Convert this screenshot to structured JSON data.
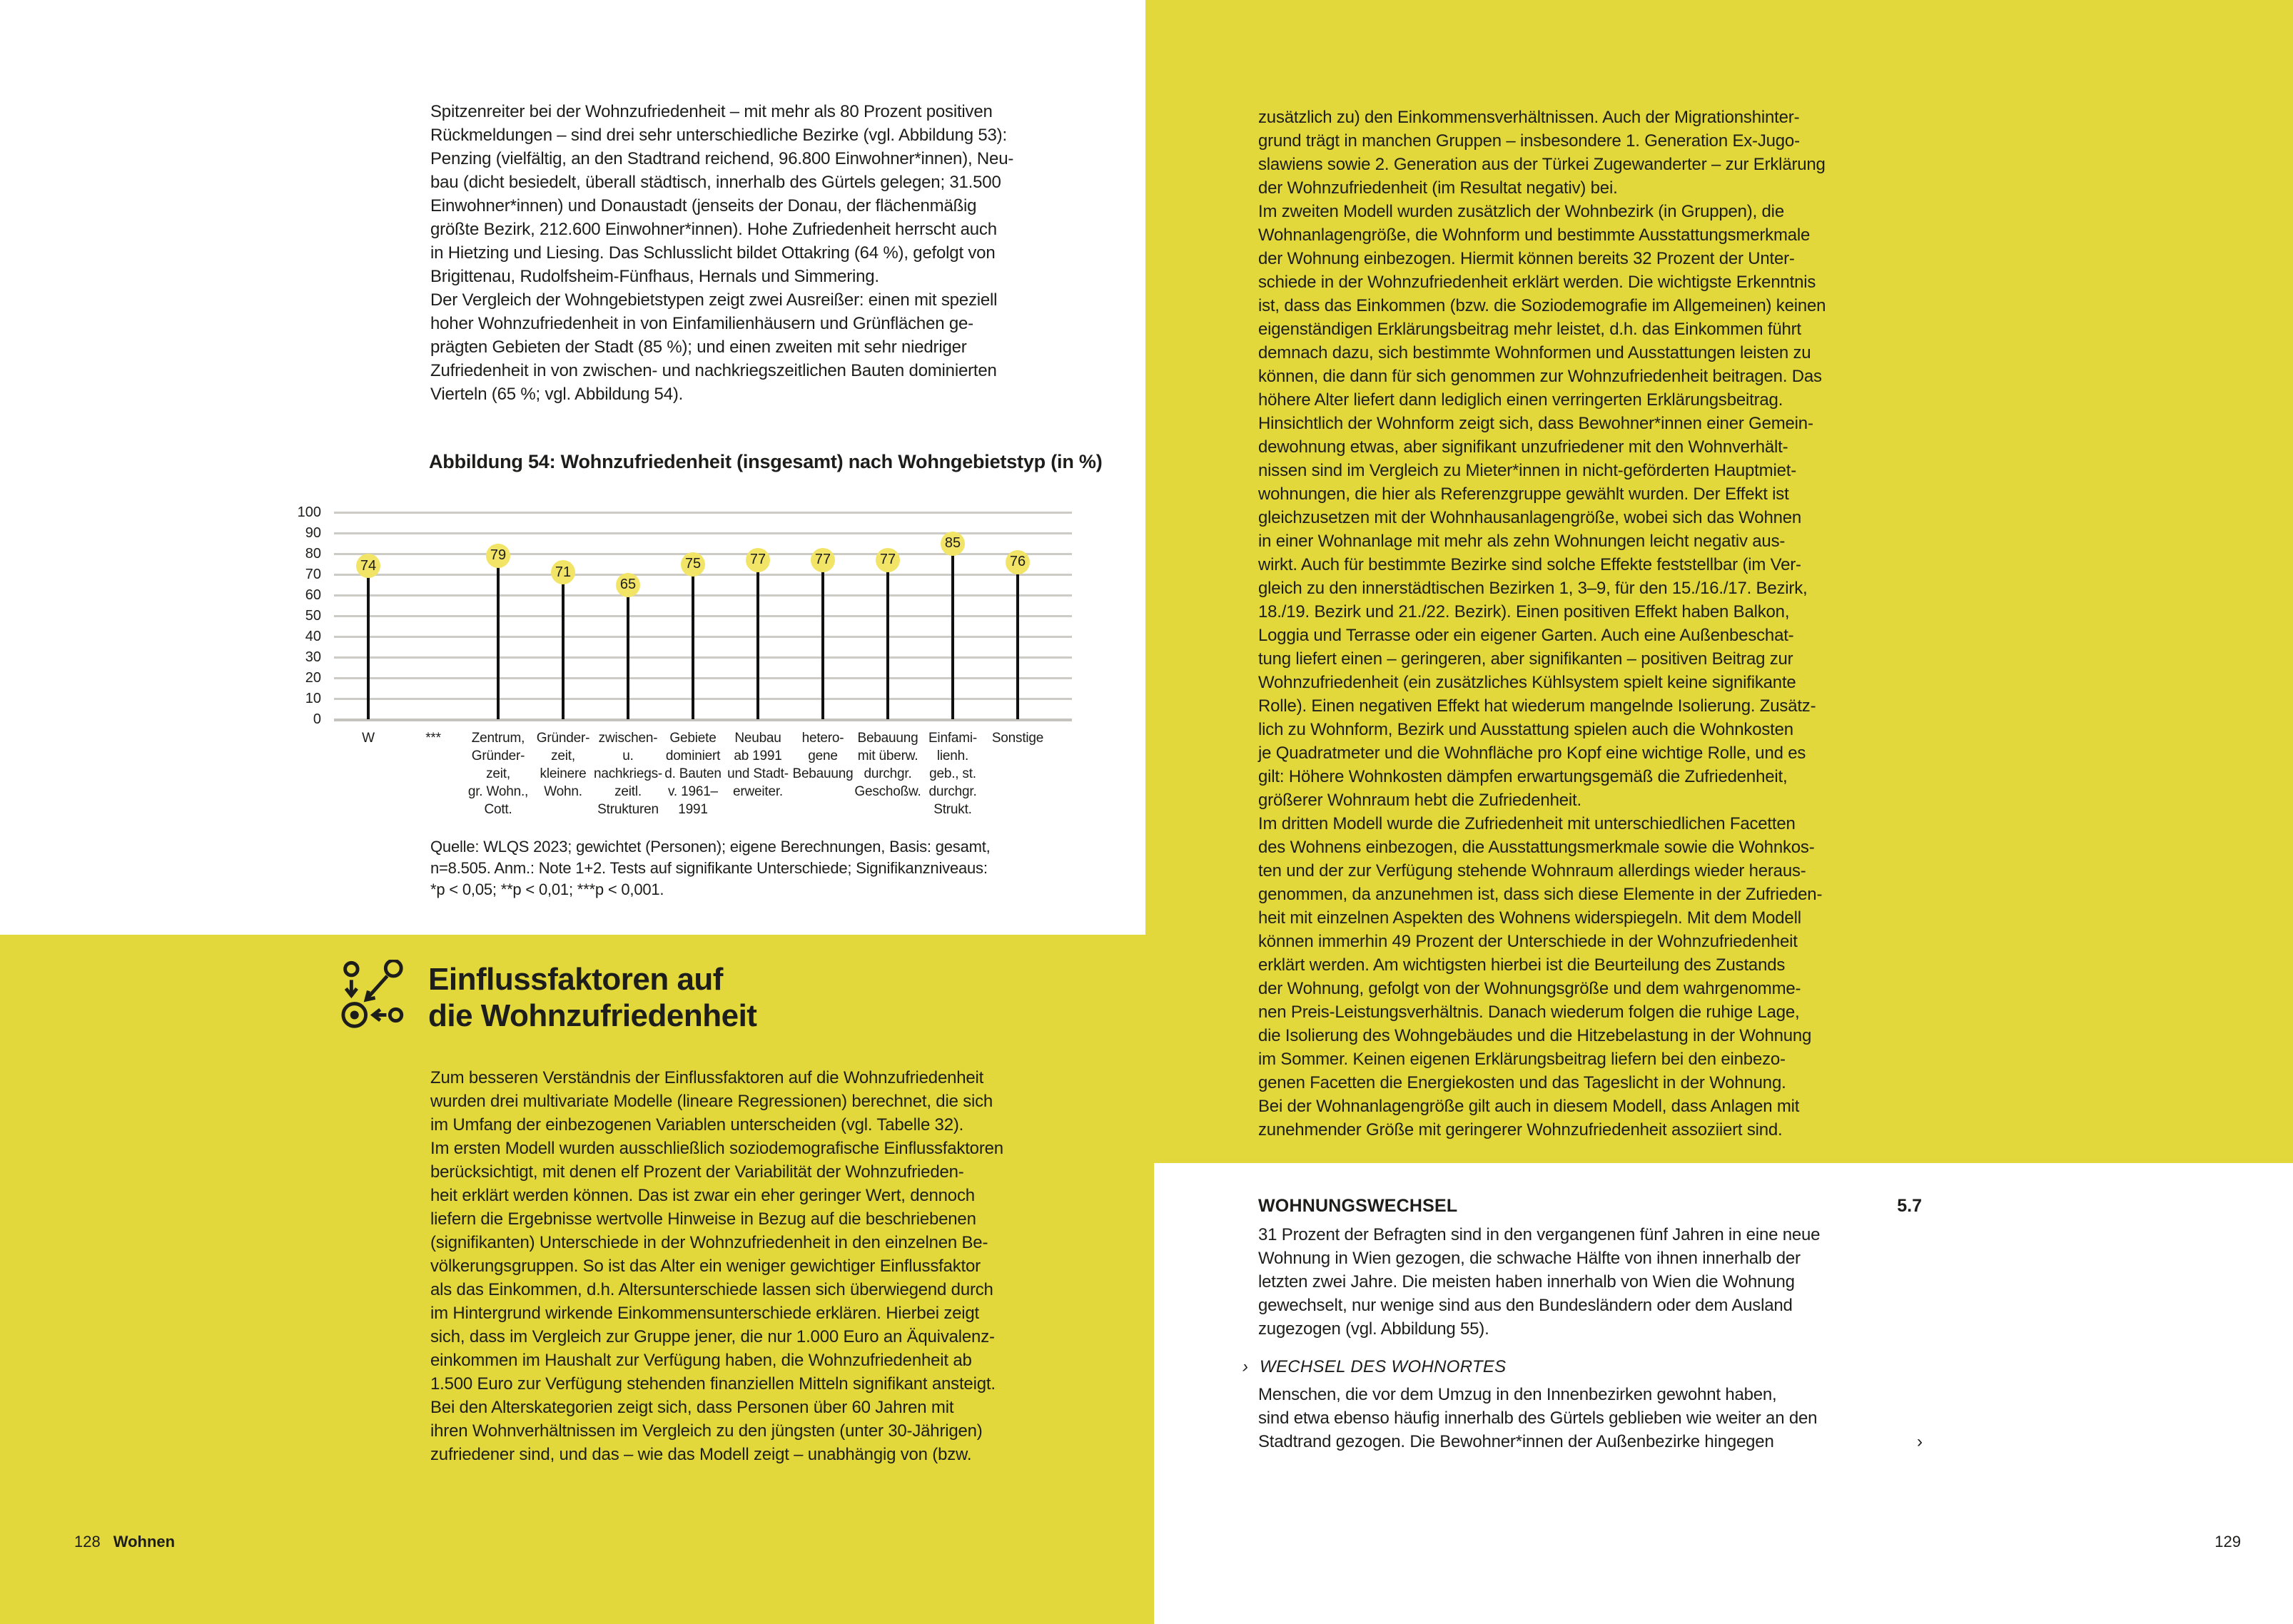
{
  "colors": {
    "page_yellow": "#e2d83b",
    "chart_dot_yellow": "#f2e466",
    "text": "#1d1d1b",
    "gridline_gray": "#cccbc6"
  },
  "left_page": {
    "intro_lines": [
      "Spitzenreiter bei der Wohnzufriedenheit – mit mehr als 80 Prozent positiven",
      "Rückmeldungen – sind drei sehr unterschiedliche Bezirke (vgl. Abbildung 53):",
      "Penzing (vielfältig, an den Stadtrand reichend, 96.800 Einwohner*innen), Neu-",
      "bau (dicht besiedelt, überall städtisch, innerhalb des Gürtels gelegen; 31.500",
      "Einwohner*innen) und Donaustadt (jenseits der Donau, der flächenmäßig",
      "größte Bezirk, 212.600 Einwohner*innen). Hohe Zufriedenheit herrscht auch",
      "in Hietzing und Liesing. Das Schlusslicht bildet Ottakring (64 %), gefolgt von",
      "Brigittenau, Rudolfsheim-Fünfhaus, Hernals und Simmering.",
      "Der Vergleich der Wohngebietstypen zeigt zwei Ausreißer: einen mit speziell",
      "hoher Wohnzufriedenheit in von Einfamilienhäusern und Grünflächen ge-",
      "prägten Gebieten der Stadt (85 %); und einen zweiten mit sehr niedriger",
      "Zufriedenheit in von zwischen- und nachkriegszeitlichen Bauten dominierten",
      "Vierteln (65 %; vgl. Abbildung 54)."
    ],
    "figure": {
      "title": "Abbildung 54: Wohnzufriedenheit (insgesamt) nach Wohngebietstyp (in %)",
      "source_lines": [
        "Quelle: WLQS 2023; gewichtet (Personen); eigene Berechnungen, Basis: gesamt,",
        "n=8.505. Anm.: Note 1+2. Tests auf signifikante Unterschiede; Signifikanzniveaus:",
        "*p < 0,05; **p < 0,01; ***p < 0,001."
      ]
    },
    "section": {
      "icon": "target-with-arrows-icon",
      "heading_lines": [
        "Einflussfaktoren auf",
        "die Wohnzufriedenheit"
      ],
      "body_lines": [
        "Zum besseren Verständnis der Einflussfaktoren auf die Wohnzufriedenheit",
        "wurden drei multivariate Modelle (lineare Regressionen) berechnet, die sich",
        "im Umfang der einbezogenen Variablen unterscheiden (vgl. Tabelle 32).",
        "Im ersten Modell wurden ausschließlich soziodemografische Einflussfaktoren",
        "berücksichtigt, mit denen elf Prozent der Variabilität der Wohnzufrieden-",
        "heit erklärt werden können. Das ist zwar ein eher geringer Wert, dennoch",
        "liefern die Ergebnisse wertvolle Hinweise in Bezug auf die beschriebenen",
        "(signifikanten) Unterschiede in der Wohnzufriedenheit in den einzelnen Be-",
        "völkerungsgruppen. So ist das Alter ein weniger gewichtiger Einflussfaktor",
        "als das Einkommen, d.h. Altersunterschiede lassen sich überwiegend durch",
        "im Hintergrund wirkende Einkommensunterschiede erklären. Hierbei zeigt",
        "sich, dass im Vergleich zur Gruppe jener, die nur 1.000 Euro an Äquivalenz-",
        "einkommen im Haushalt zur Verfügung haben, die Wohnzufriedenheit ab",
        "1.500 Euro zur Verfügung stehenden finanziellen Mitteln signifikant ansteigt.",
        "Bei den Alterskategorien zeigt sich, dass Personen über 60 Jahren mit",
        "ihren Wohnverhältnissen im Vergleich zu den jüngsten (unter 30-Jährigen)",
        "zufriedener sind, und das – wie das Modell zeigt – unabhängig von (bzw."
      ]
    },
    "footer": {
      "page_number": "128",
      "chapter": "Wohnen"
    }
  },
  "right_page": {
    "body_lines": [
      "zusätzlich zu) den Einkommensverhältnissen. Auch der Migrationshinter-",
      "grund trägt in manchen Gruppen – insbesondere 1. Generation Ex-Jugo-",
      "slawiens sowie 2. Generation aus der Türkei Zugewanderter – zur Erklärung",
      "der Wohnzufriedenheit (im Resultat negativ) bei.",
      "Im zweiten Modell wurden zusätzlich der Wohnbezirk (in Gruppen), die",
      "Wohnanlagengröße, die Wohnform und bestimmte Ausstattungsmerkmale",
      "der Wohnung einbezogen. Hiermit können bereits 32 Prozent der Unter-",
      "schiede in der Wohnzufriedenheit erklärt werden. Die wichtigste Erkenntnis",
      "ist, dass das Einkommen (bzw. die Soziodemografie im Allgemeinen) keinen",
      "eigenständigen Erklärungsbeitrag mehr leistet, d.h. das Einkommen führt",
      "demnach dazu, sich bestimmte Wohnformen und Ausstattungen leisten zu",
      "können, die dann für sich genommen zur Wohnzufriedenheit beitragen. Das",
      "höhere Alter liefert dann lediglich einen verringerten Erklärungsbeitrag.",
      "Hinsichtlich der Wohnform zeigt sich, dass Bewohner*innen einer Gemein-",
      "dewohnung etwas, aber signifikant unzufriedener mit den Wohnverhält-",
      "nissen sind im Vergleich zu Mieter*innen in nicht-geförderten Hauptmiet-",
      "wohnungen, die hier als Referenzgruppe gewählt wurden. Der Effekt ist",
      "gleichzusetzen mit der Wohnhausanlagengröße, wobei sich das Wohnen",
      "in einer Wohnanlage mit mehr als zehn Wohnungen leicht negativ aus-",
      "wirkt. Auch für bestimmte Bezirke sind solche Effekte feststellbar (im Ver-",
      "gleich zu den innerstädtischen Bezirken 1, 3–9, für den 15./16./17. Bezirk,",
      "18./19. Bezirk und 21./22. Bezirk). Einen positiven Effekt haben Balkon,",
      "Loggia und Terrasse oder ein eigener Garten. Auch eine Außenbeschat-",
      "tung liefert einen – geringeren, aber signifikanten – positiven Beitrag zur",
      "Wohnzufriedenheit (ein zusätzliches Kühlsystem spielt keine signifikante",
      "Rolle). Einen negativen Effekt hat wiederum mangelnde Isolierung. Zusätz-",
      "lich zu Wohnform, Bezirk und Ausstattung spielen auch die Wohnkosten",
      "je Quadratmeter und die Wohnfläche pro Kopf eine wichtige Rolle, und es",
      "gilt: Höhere Wohnkosten dämpfen erwartungsgemäß die Zufriedenheit,",
      "größerer Wohnraum hebt die Zufriedenheit.",
      "Im dritten Modell wurde die Zufriedenheit mit unterschiedlichen Facetten",
      "des Wohnens einbezogen, die Ausstattungsmerkmale sowie die Wohnkos-",
      "ten und der zur Verfügung stehende Wohnraum allerdings wieder heraus-",
      "genommen, da anzunehmen ist, dass sich diese Elemente in der Zufrieden-",
      "heit mit einzelnen Aspekten des Wohnens widerspiegeln. Mit dem Modell",
      "können immerhin 49 Prozent der Unterschiede in der Wohnzufriedenheit",
      "erklärt werden. Am wichtigsten hierbei ist die Beurteilung des Zustands",
      "der Wohnung, gefolgt von der Wohnungsgröße und dem wahrgenomme-",
      "nen Preis-Leistungsverhältnis. Danach wiederum folgen die ruhige Lage,",
      "die Isolierung des Wohngebäudes und die Hitzebelastung in der Wohnung",
      "im Sommer. Keinen eigenen Erklärungsbeitrag liefern bei den einbezo-",
      "genen Facetten die Energiekosten und das Tageslicht in der Wohnung.",
      "Bei der Wohnanlagengröße gilt auch in diesem Modell, dass Anlagen mit",
      "zunehmender Größe mit geringerer Wohnzufriedenheit assoziiert sind."
    ],
    "subsection": {
      "heading": "WOHNUNGSWECHSEL",
      "number": "5.7",
      "paragraph_lines": [
        "31 Prozent der Befragten sind in den vergangenen fünf Jahren in eine neue",
        "Wohnung in Wien gezogen, die schwache Hälfte von ihnen innerhalb der",
        "letzten zwei Jahre. Die meisten haben innerhalb von Wien die Wohnung",
        "gewechselt, nur wenige sind aus den Bundesländern oder dem Ausland",
        "zugezogen (vgl. Abbildung 55)."
      ],
      "sub_subsection": {
        "bullet": "›",
        "heading": "WECHSEL DES WOHNORTES",
        "paragraph_lines": [
          "Menschen, die vor dem Umzug in den Innenbezirken gewohnt haben,",
          "sind etwa ebenso häufig innerhalb des Gürtels geblieben wie weiter an den",
          "Stadtrand gezogen. Die Bewohner*innen der Außenbezirke hingegen"
        ],
        "continuation_marker": "›"
      }
    },
    "footer": {
      "page_number": "129"
    }
  },
  "chart_data": {
    "type": "bar",
    "style": "lollipop",
    "title": "Abbildung 54: Wohnzufriedenheit (insgesamt) nach Wohngebietstyp (in %)",
    "categories": [
      "W",
      "***",
      "Zentrum, Gründerzeit, gr. Wohn., Cott.",
      "Gründerzeit, kleinere Wohn.",
      "zwischen- u. nachkriegszeitl. Strukturen",
      "Gebiete dominiert d. Bauten v. 1961–1991",
      "Neubau ab 1991 und Stadterweiter.",
      "heterogene Bebauung",
      "Bebauung mit überw. durchgr. Geschoßw.",
      "Einfamilienh. geb., st. durchgr. Strukt.",
      "Sonstige"
    ],
    "category_label_lines": [
      [
        "W"
      ],
      [
        "***"
      ],
      [
        "Zentrum,",
        "Gründer-",
        "zeit,",
        "gr. Wohn.,",
        "Cott."
      ],
      [
        "Gründer-",
        "zeit,",
        "kleinere",
        "Wohn."
      ],
      [
        "zwischen-",
        "u.",
        "nachkriegs-",
        "zeitl.",
        "Strukturen"
      ],
      [
        "Gebiete",
        "dominiert",
        "d. Bauten",
        "v. 1961–",
        "1991"
      ],
      [
        "Neubau",
        "ab 1991",
        "und Stadt-",
        "erweiter."
      ],
      [
        "hetero-",
        "gene",
        "Bebauung"
      ],
      [
        "Bebauung",
        "mit überw.",
        "durchgr.",
        "Geschoßw."
      ],
      [
        "Einfami-",
        "lienh.",
        "geb., st.",
        "durchgr.",
        "Strukt."
      ],
      [
        "Sonstige"
      ]
    ],
    "values": [
      74,
      null,
      79,
      71,
      65,
      75,
      77,
      77,
      77,
      85,
      76
    ],
    "xlabel": "",
    "ylabel": "",
    "ylim": [
      0,
      100
    ],
    "yticks": [
      0,
      10,
      20,
      30,
      40,
      50,
      60,
      70,
      80,
      90,
      100
    ],
    "grid": true,
    "legend": "none",
    "data_label_style": "yellow-circle"
  }
}
